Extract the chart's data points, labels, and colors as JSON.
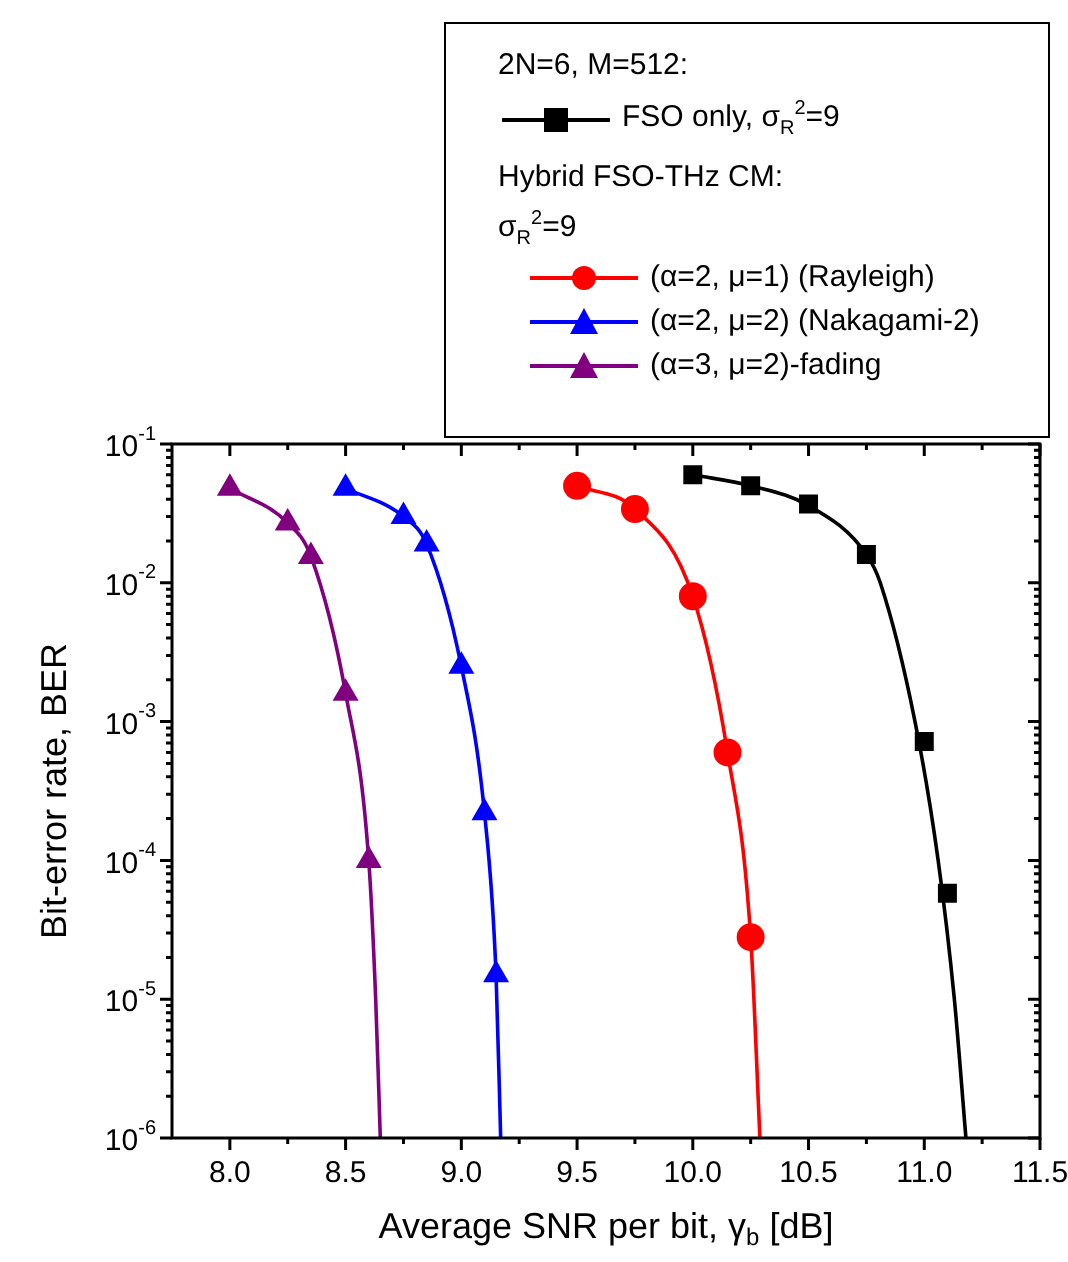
{
  "chart_data": {
    "type": "line",
    "xlabel": "Average SNR per bit, γ$_{b}$ [dB]",
    "ylabel": "Bit-error rate, BER",
    "legend_title": "2N=6, M=512:",
    "legend": "top right",
    "grid": false,
    "log": "y",
    "xlim": [
      7.75,
      11.5
    ],
    "xticks": [
      {
        "value": 8,
        "label": "8.0"
      },
      {
        "value": 8.5,
        "label": "8.5"
      },
      {
        "value": 9,
        "label": "9.0"
      },
      {
        "value": 9.5,
        "label": "9.5"
      },
      {
        "value": 10,
        "label": "10.0"
      },
      {
        "value": 10.5,
        "label": "10.5"
      },
      {
        "value": 11,
        "label": "11.0"
      },
      {
        "value": 11.5,
        "label": "11.5"
      }
    ],
    "ylim": [
      1e-06,
      0.1
    ],
    "yticks": [
      {
        "value": 1e-06,
        "label": "10$^{-6}$"
      },
      {
        "value": 1e-05,
        "label": "10$^{-5}$"
      },
      {
        "value": 0.0001,
        "label": "10$^{-4}$"
      },
      {
        "value": 0.001,
        "label": "10$^{-3}$"
      },
      {
        "value": 0.01,
        "label": "10$^{-2}$"
      },
      {
        "value": 0.1,
        "label": "10$^{-1}$"
      }
    ],
    "annotations": [
      "Hybrid FSO-THz CM:",
      "σ$_{R}$$^{2}$=9"
    ],
    "series": [
      {
        "type": "scatter",
        "name": "FSO only, σ$_{R}$$^{2}$=9",
        "color": "#000000",
        "marker": "square",
        "x": [
          10,
          10.25,
          10.5,
          10.75,
          11,
          11.1
        ],
        "values": [
          0.06,
          0.05,
          0.037,
          0.016,
          0.00072,
          5.8e-05
        ]
      },
      {
        "type": "scatter",
        "name": "(α=2, μ=1) (Rayleigh)",
        "color": "#ff0000",
        "marker": "circle",
        "x": [
          9.5,
          9.75,
          10,
          10.15,
          10.25
        ],
        "values": [
          0.05,
          0.034,
          0.008,
          0.0006,
          2.8e-05
        ]
      },
      {
        "type": "scatter",
        "name": "(α=2, μ=2) (Nakagami-2)",
        "color": "#0000ff",
        "marker": "triangle",
        "x": [
          8.5,
          8.75,
          8.85,
          9,
          9.1,
          9.15
        ],
        "values": [
          0.048,
          0.03,
          0.019,
          0.0025,
          0.00022,
          1.5e-05
        ]
      },
      {
        "type": "scatter",
        "name": "(α=3, μ=2)-fading",
        "color": "#800080",
        "marker": "triangle",
        "x": [
          8,
          8.25,
          8.35,
          8.5,
          8.6
        ],
        "values": [
          0.048,
          0.027,
          0.0155,
          0.0016,
          0.0001
        ]
      },
      {
        "color": "#000000",
        "marker": "none",
        "x": [
          10,
          10.25,
          10.5,
          10.75,
          10.81,
          10.96,
          11.06,
          11.13,
          11.18
        ],
        "values": [
          0.06,
          0.05,
          0.036,
          0.016,
          0.01,
          0.001,
          0.0001,
          1e-05,
          1e-06
        ]
      },
      {
        "color": "#ff0000",
        "marker": "none",
        "x": [
          9.5,
          9.75,
          10,
          10.15,
          10.25,
          10.29
        ],
        "values": [
          0.05,
          0.034,
          0.008,
          0.0006,
          2.8e-05,
          1e-06
        ]
      },
      {
        "color": "#0000ff",
        "marker": "none",
        "x": [
          8.5,
          8.75,
          8.85,
          9,
          9.1,
          9.15,
          9.17
        ],
        "values": [
          0.048,
          0.03,
          0.019,
          0.0025,
          0.00022,
          1.5e-05,
          1e-06
        ]
      },
      {
        "color": "#800080",
        "marker": "none",
        "x": [
          8,
          8.25,
          8.35,
          8.5,
          8.6,
          8.63,
          8.65
        ],
        "values": [
          0.048,
          0.027,
          0.0155,
          0.0016,
          0.0001,
          1e-05,
          1e-06
        ]
      }
    ]
  }
}
